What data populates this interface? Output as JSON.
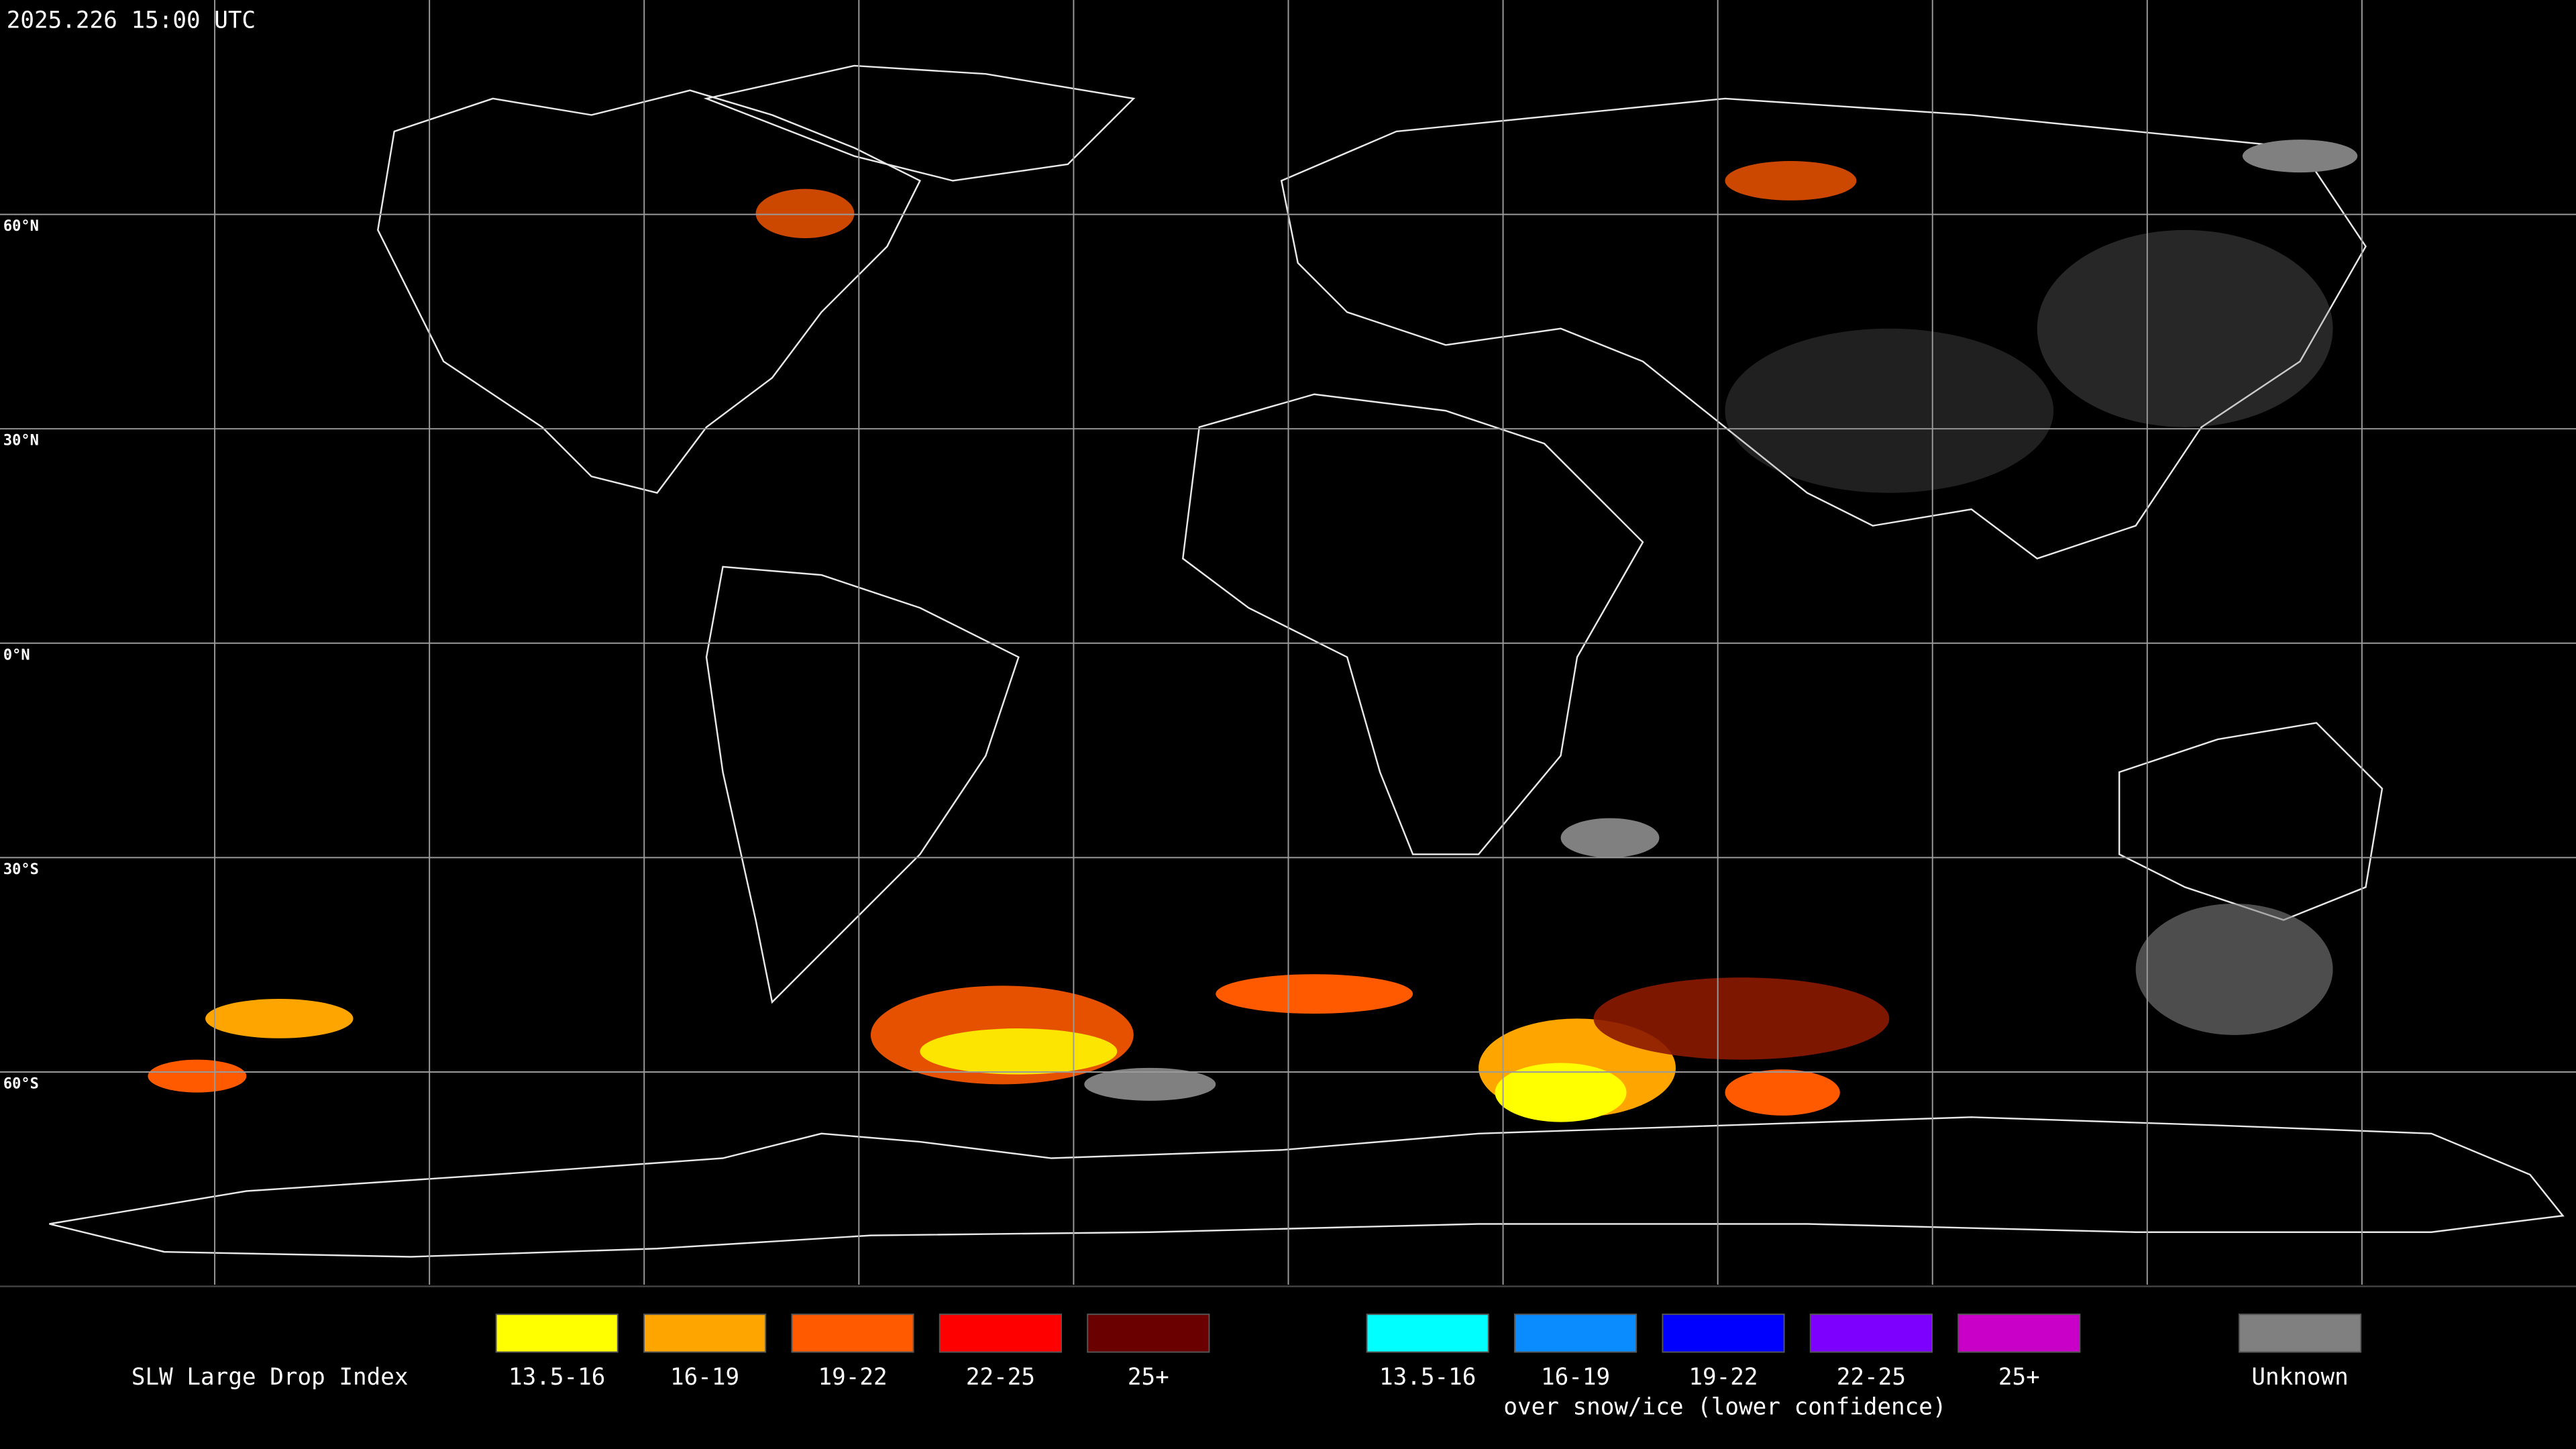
{
  "header": {
    "timestamp": "2025.226 15:00 UTC"
  },
  "map": {
    "latitude_labels": [
      "60°N",
      "30°N",
      "0°N",
      "30°S",
      "60°S"
    ]
  },
  "legend": {
    "title": "SLW Large Drop Index",
    "liquid": [
      {
        "label": "13.5-16",
        "color": "#ffff00"
      },
      {
        "label": "16-19",
        "color": "#ffa500"
      },
      {
        "label": "19-22",
        "color": "#ff5a00"
      },
      {
        "label": "22-25",
        "color": "#ff0000"
      },
      {
        "label": "25+",
        "color": "#6b0000"
      }
    ],
    "ice": [
      {
        "label": "13.5-16",
        "color": "#00ffff"
      },
      {
        "label": "16-19",
        "color": "#0a8cff"
      },
      {
        "label": "19-22",
        "color": "#0000ff"
      },
      {
        "label": "22-25",
        "color": "#7d00ff"
      },
      {
        "label": "25+",
        "color": "#c800c8"
      }
    ],
    "ice_note": "over snow/ice (lower confidence)",
    "unknown": {
      "label": "Unknown",
      "color": "#808080"
    }
  }
}
